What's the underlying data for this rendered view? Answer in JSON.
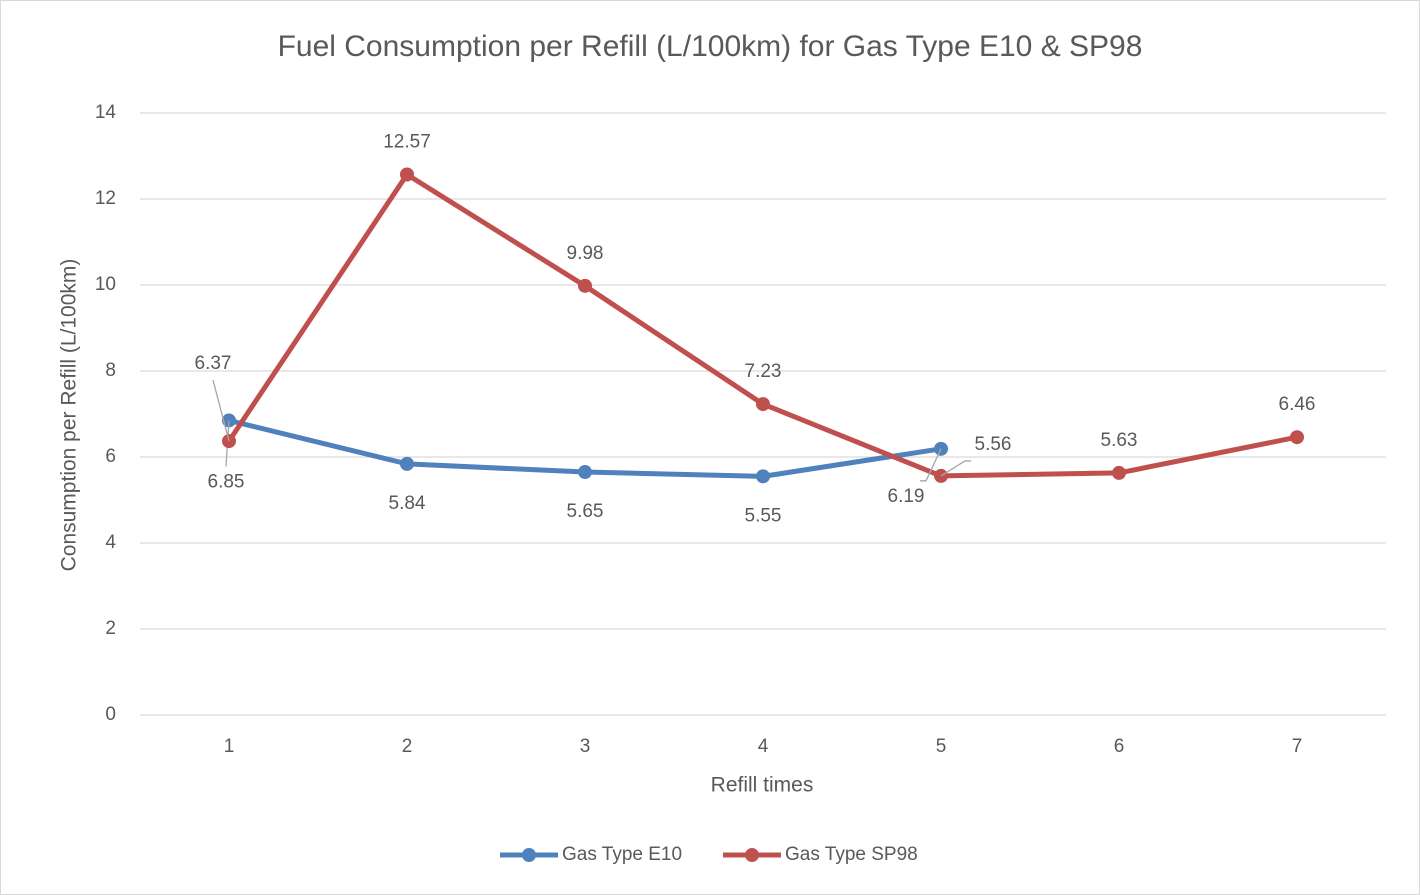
{
  "chart_data": {
    "type": "line",
    "title": "Fuel Consumption per Refill (L/100km) for Gas Type E10 & SP98",
    "x_label": "Refill times",
    "y_label": "Consumption per Refill (L/100km)",
    "categories": [
      "1",
      "2",
      "3",
      "4",
      "5",
      "6",
      "7"
    ],
    "series": [
      {
        "name": "Gas Type E10",
        "color": "#4f81bd",
        "values": [
          6.85,
          5.84,
          5.65,
          5.55,
          6.19,
          null,
          null
        ]
      },
      {
        "name": "Gas Type SP98",
        "color": "#c0504d",
        "values": [
          6.37,
          12.57,
          9.98,
          7.23,
          5.56,
          5.63,
          6.46
        ]
      }
    ],
    "ylim": [
      0,
      14
    ],
    "yticks": [
      0,
      2,
      4,
      6,
      8,
      10,
      12,
      14
    ],
    "grid": true,
    "legend": "bottom"
  }
}
